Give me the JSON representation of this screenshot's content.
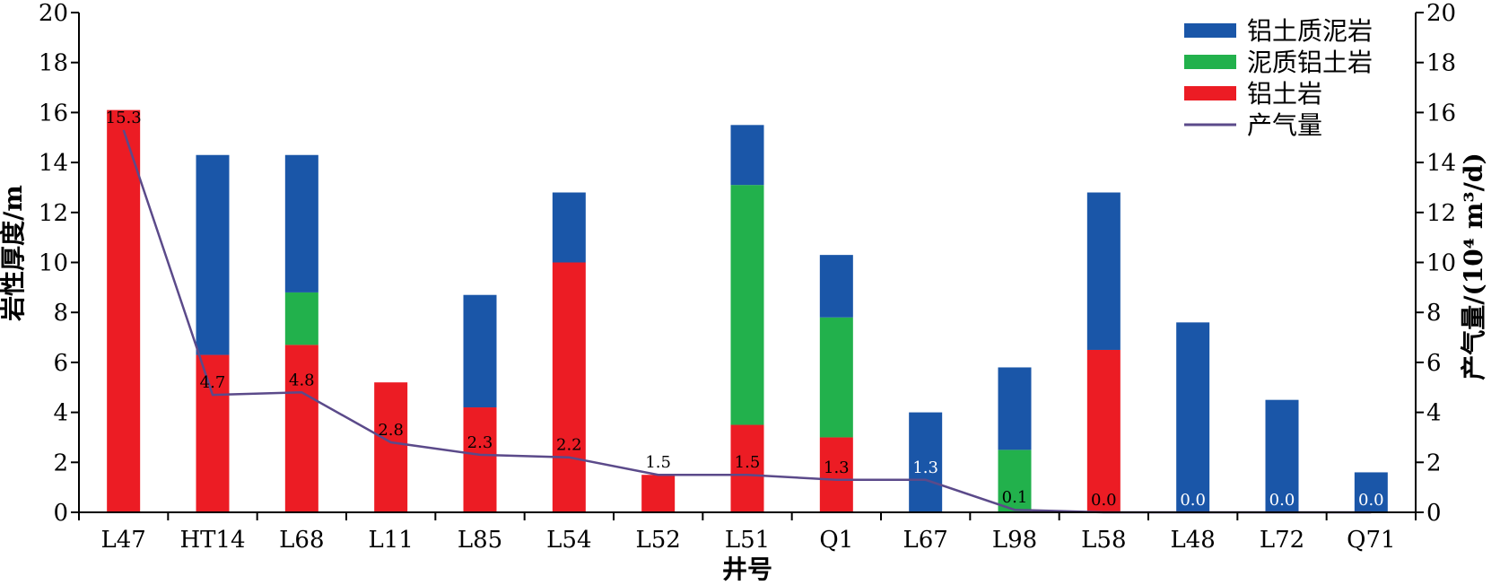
{
  "chart_data": {
    "type": "bar",
    "stacked": true,
    "categories": [
      "L47",
      "HT14",
      "L68",
      "L11",
      "L85",
      "L54",
      "L52",
      "L51",
      "Q1",
      "L67",
      "L98",
      "L58",
      "L48",
      "L72",
      "Q71"
    ],
    "series": [
      {
        "name": "铝土岩",
        "color": "#ec1c24",
        "values": [
          16.1,
          6.3,
          6.7,
          5.2,
          4.2,
          10.0,
          1.5,
          3.5,
          3.0,
          0,
          0,
          6.5,
          0,
          0,
          0
        ]
      },
      {
        "name": "泥质铝土岩",
        "color": "#22b14c",
        "values": [
          0,
          0,
          2.1,
          0,
          0,
          0,
          0,
          9.6,
          4.8,
          0,
          2.5,
          0,
          0,
          0,
          0
        ]
      },
      {
        "name": "铝土质泥岩",
        "color": "#1a56a8",
        "values": [
          0,
          8.0,
          5.5,
          0,
          4.5,
          2.8,
          0,
          2.4,
          2.5,
          4.0,
          3.3,
          6.3,
          7.6,
          4.5,
          1.6
        ]
      }
    ],
    "line_series": {
      "name": "产气量",
      "color": "#5b4a8a",
      "axis": "right",
      "values": [
        15.3,
        4.7,
        4.8,
        2.8,
        2.3,
        2.2,
        1.5,
        1.5,
        1.3,
        1.3,
        0.1,
        0.0,
        0.0,
        0.0,
        0.0
      ],
      "labels": [
        "15.3",
        "4.7",
        "4.8",
        "2.8",
        "2.3",
        "2.2",
        "1.5",
        "1.5",
        "1.3",
        "1.3",
        "0.1",
        "0.0",
        "0.0",
        "0.0",
        "0.0"
      ],
      "label_colors": [
        "#000000",
        "#000000",
        "#000000",
        "#000000",
        "#000000",
        "#000000",
        "#000000",
        "#000000",
        "#000000",
        "#ffffff",
        "#000000",
        "#000000",
        "#ffffff",
        "#ffffff",
        "#ffffff"
      ]
    },
    "legend_order": [
      "铝土质泥岩",
      "泥质铝土岩",
      "铝土岩",
      "产气量"
    ],
    "legend_position": "top-right",
    "xlabel": "井号",
    "ylabel": "岩性厚度/m",
    "y2label": "产气量/(10⁴ m³/d)",
    "ylim": [
      0,
      20
    ],
    "y2lim": [
      0,
      20
    ],
    "yticks": [
      0,
      2,
      4,
      6,
      8,
      10,
      12,
      14,
      16,
      18,
      20
    ],
    "grid": false
  }
}
